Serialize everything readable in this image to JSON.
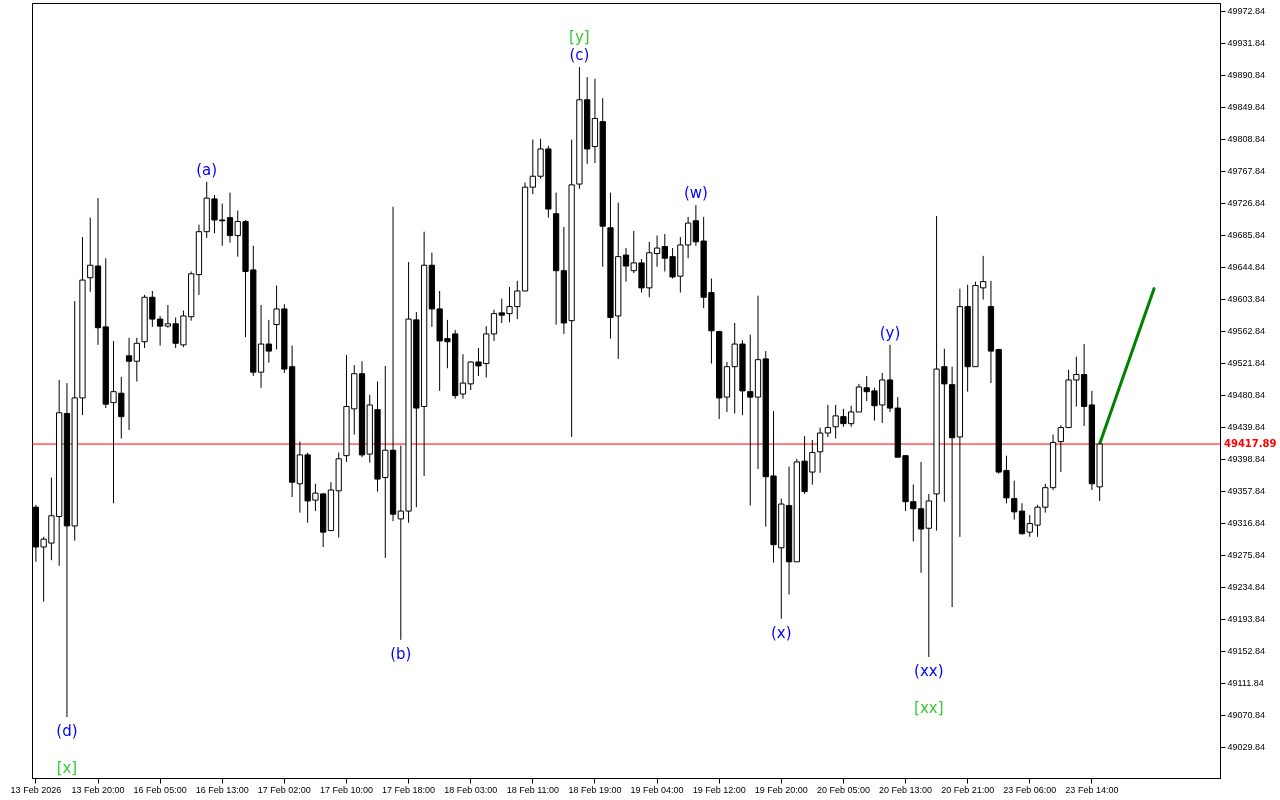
{
  "chart_data": {
    "type": "candlestick",
    "categories": [
      "13 Feb 2026",
      null,
      null,
      null,
      null,
      null,
      null,
      null,
      "13 Feb 20:00",
      null,
      null,
      null,
      null,
      null,
      null,
      null,
      "16 Feb 05:00",
      null,
      null,
      null,
      null,
      null,
      null,
      null,
      "16 Feb 13:00",
      null,
      null,
      null,
      null,
      null,
      null,
      null,
      "17 Feb 02:00",
      null,
      null,
      null,
      null,
      null,
      null,
      null,
      "17 Feb 10:00",
      null,
      null,
      null,
      null,
      null,
      null,
      null,
      "17 Feb 18:00",
      null,
      null,
      null,
      null,
      null,
      null,
      null,
      "18 Feb 03:00",
      null,
      null,
      null,
      null,
      null,
      null,
      null,
      "18 Feb 11:00",
      null,
      null,
      null,
      null,
      null,
      null,
      null,
      "18 Feb 19:00",
      null,
      null,
      null,
      null,
      null,
      null,
      null,
      "19 Feb 04:00",
      null,
      null,
      null,
      null,
      null,
      null,
      null,
      "19 Feb 12:00",
      null,
      null,
      null,
      null,
      null,
      null,
      null,
      "19 Feb 20:00",
      null,
      null,
      null,
      null,
      null,
      null,
      null,
      "20 Feb 05:00",
      null,
      null,
      null,
      null,
      null,
      null,
      null,
      "20 Feb 13:00",
      null,
      null,
      null,
      null,
      null,
      null,
      null,
      "20 Feb 21:00",
      null,
      null,
      null,
      null,
      null,
      null,
      null,
      "23 Feb 06:00",
      null,
      null,
      null,
      null,
      null,
      null,
      null,
      "23 Feb 14:00",
      null,
      null,
      null,
      null,
      null,
      null,
      null,
      null,
      null,
      null,
      null,
      null,
      null,
      null,
      null,
      null
    ],
    "ohlc": [
      [
        49337,
        49340,
        49267,
        49286
      ],
      [
        49286,
        49299,
        49216,
        49296
      ],
      [
        49291,
        49375,
        49269,
        49326
      ],
      [
        49325,
        49500,
        49262,
        49458
      ],
      [
        49457,
        49496,
        49068,
        49313
      ],
      [
        49313,
        49601,
        49294,
        49477
      ],
      [
        49477,
        49683,
        49455,
        49628
      ],
      [
        49631,
        49708,
        49613,
        49647
      ],
      [
        49646,
        49733,
        49545,
        49567
      ],
      [
        49568,
        49656,
        49464,
        49469
      ],
      [
        49471,
        49550,
        49342,
        49485
      ],
      [
        49483,
        49504,
        49425,
        49453
      ],
      [
        49531,
        49554,
        49436,
        49524
      ],
      [
        49524,
        49554,
        49498,
        49547
      ],
      [
        49549,
        49609,
        49541,
        49606
      ],
      [
        49606,
        49614,
        49568,
        49578
      ],
      [
        49578,
        49582,
        49544,
        49569
      ],
      [
        49569,
        49596,
        49567,
        49572
      ],
      [
        49572,
        49580,
        49541,
        49547
      ],
      [
        49545,
        49589,
        49542,
        49582
      ],
      [
        49581,
        49639,
        49576,
        49636
      ],
      [
        49635,
        49699,
        49609,
        49690
      ],
      [
        49690,
        49754,
        49682,
        49733
      ],
      [
        49732,
        49737,
        49688,
        49705
      ],
      [
        49705,
        49726,
        49672,
        49704
      ],
      [
        49708,
        49740,
        49676,
        49685
      ],
      [
        49685,
        49717,
        49658,
        49703
      ],
      [
        49703,
        49705,
        49555,
        49639
      ],
      [
        49641,
        49672,
        49505,
        49510
      ],
      [
        49510,
        49596,
        49490,
        49546
      ],
      [
        49546,
        49577,
        49522,
        49537
      ],
      [
        49571,
        49621,
        49539,
        49591
      ],
      [
        49591,
        49597,
        49509,
        49514
      ],
      [
        49517,
        49544,
        49350,
        49369
      ],
      [
        49367,
        49421,
        49330,
        49404
      ],
      [
        49404,
        49407,
        49317,
        49345
      ],
      [
        49346,
        49367,
        49332,
        49355
      ],
      [
        49354,
        49355,
        49286,
        49305
      ],
      [
        49307,
        49369,
        49307,
        49359
      ],
      [
        49358,
        49407,
        49298,
        49399
      ],
      [
        49403,
        49532,
        49395,
        49466
      ],
      [
        49463,
        49519,
        49430,
        49508
      ],
      [
        49508,
        49524,
        49401,
        49404
      ],
      [
        49405,
        49481,
        49394,
        49468
      ],
      [
        49462,
        49498,
        49357,
        49373
      ],
      [
        49375,
        49518,
        49272,
        49410
      ],
      [
        49410,
        49722,
        49319,
        49328
      ],
      [
        49322,
        49416,
        49167,
        49332
      ],
      [
        49332,
        49651,
        49317,
        49578
      ],
      [
        49577,
        49587,
        49337,
        49464
      ],
      [
        49466,
        49690,
        49377,
        49647
      ],
      [
        49647,
        49663,
        49568,
        49591
      ],
      [
        49591,
        49614,
        49486,
        49550
      ],
      [
        49553,
        49577,
        49515,
        49549
      ],
      [
        49559,
        49564,
        49476,
        49480
      ],
      [
        49482,
        49533,
        49476,
        49496
      ],
      [
        49495,
        49524,
        49487,
        49523
      ],
      [
        49523,
        49541,
        49505,
        49518
      ],
      [
        49521,
        49569,
        49503,
        49559
      ],
      [
        49559,
        49590,
        49550,
        49585
      ],
      [
        49586,
        49604,
        49573,
        49583
      ],
      [
        49585,
        49619,
        49574,
        49594
      ],
      [
        49594,
        49627,
        49578,
        49614
      ],
      [
        49614,
        49753,
        49614,
        49747
      ],
      [
        49747,
        49808,
        49738,
        49761
      ],
      [
        49761,
        49809,
        49758,
        49796
      ],
      [
        49796,
        49800,
        49708,
        49719
      ],
      [
        49713,
        49740,
        49571,
        49640
      ],
      [
        49640,
        49696,
        49559,
        49573
      ],
      [
        49576,
        49808,
        49427,
        49750
      ],
      [
        49751,
        49901,
        49745,
        49859
      ],
      [
        49859,
        49888,
        49777,
        49796
      ],
      [
        49799,
        49886,
        49778,
        49835
      ],
      [
        49831,
        49861,
        49645,
        49697
      ],
      [
        49695,
        49740,
        49553,
        49580
      ],
      [
        49582,
        49727,
        49527,
        49658
      ],
      [
        49660,
        49669,
        49626,
        49646
      ],
      [
        49640,
        49691,
        49637,
        49650
      ],
      [
        49650,
        49655,
        49612,
        49618
      ],
      [
        49618,
        49677,
        49606,
        49663
      ],
      [
        49662,
        49685,
        49645,
        49669
      ],
      [
        49671,
        49687,
        49639,
        49656
      ],
      [
        49658,
        49669,
        49630,
        49632
      ],
      [
        49633,
        49683,
        49612,
        49673
      ],
      [
        49673,
        49709,
        49656,
        49701
      ],
      [
        49704,
        49724,
        49672,
        49677
      ],
      [
        49678,
        49709,
        49592,
        49606
      ],
      [
        49612,
        49630,
        49521,
        49563
      ],
      [
        49562,
        49563,
        49450,
        49477
      ],
      [
        49478,
        49523,
        49459,
        49517
      ],
      [
        49517,
        49573,
        49457,
        49546
      ],
      [
        49546,
        49551,
        49455,
        49486
      ],
      [
        49485,
        49558,
        49339,
        49478
      ],
      [
        49478,
        49608,
        49386,
        49526
      ],
      [
        49527,
        49537,
        49312,
        49376
      ],
      [
        49377,
        49460,
        49266,
        49289
      ],
      [
        49285,
        49348,
        49194,
        49341
      ],
      [
        49339,
        49389,
        49225,
        49267
      ],
      [
        49267,
        49399,
        49267,
        49395
      ],
      [
        49396,
        49428,
        49354,
        49357
      ],
      [
        49382,
        49423,
        49366,
        49407
      ],
      [
        49408,
        49439,
        49381,
        49432
      ],
      [
        49432,
        49468,
        49427,
        49439
      ],
      [
        49440,
        49468,
        49425,
        49454
      ],
      [
        49453,
        49463,
        49440,
        49444
      ],
      [
        49444,
        49467,
        49440,
        49459
      ],
      [
        49459,
        49495,
        49459,
        49491
      ],
      [
        49490,
        49505,
        49473,
        49485
      ],
      [
        49486,
        49490,
        49448,
        49467
      ],
      [
        49468,
        49509,
        49445,
        49500
      ],
      [
        49500,
        49545,
        49459,
        49464
      ],
      [
        49464,
        49478,
        49401,
        49401
      ],
      [
        49403,
        49403,
        49332,
        49344
      ],
      [
        49344,
        49366,
        49293,
        49335
      ],
      [
        49335,
        49395,
        49253,
        49309
      ],
      [
        49310,
        49354,
        49145,
        49345
      ],
      [
        49354,
        49710,
        49307,
        49514
      ],
      [
        49517,
        49540,
        49344,
        49495
      ],
      [
        49494,
        49517,
        49209,
        49426
      ],
      [
        49427,
        49617,
        49299,
        49594
      ],
      [
        49594,
        49622,
        49485,
        49517
      ],
      [
        49517,
        49626,
        49517,
        49621
      ],
      [
        49618,
        49659,
        49603,
        49626
      ],
      [
        49594,
        49627,
        49496,
        49537
      ],
      [
        49539,
        49540,
        49380,
        49382
      ],
      [
        49384,
        49403,
        49342,
        49349
      ],
      [
        49348,
        49371,
        49321,
        49331
      ],
      [
        49332,
        49342,
        49302,
        49303
      ],
      [
        49305,
        49327,
        49299,
        49316
      ],
      [
        49314,
        49340,
        49299,
        49337
      ],
      [
        49337,
        49367,
        49330,
        49362
      ],
      [
        49362,
        49430,
        49359,
        49420
      ],
      [
        49421,
        49442,
        49382,
        49439
      ],
      [
        49439,
        49513,
        49439,
        49500
      ],
      [
        49500,
        49530,
        49466,
        49507
      ],
      [
        49507,
        49546,
        49441,
        49466
      ],
      [
        49468,
        49486,
        49359,
        49367
      ],
      [
        49363,
        49417.89,
        49345,
        49417.89
      ],
      null,
      null,
      null,
      null,
      null,
      null,
      null,
      null,
      null,
      null,
      null,
      null,
      null,
      null,
      null
    ],
    "series": [
      {
        "type": "line",
        "color": "#008000",
        "values": [
          null,
          null,
          null,
          null,
          null,
          null,
          null,
          null,
          null,
          null,
          null,
          null,
          null,
          null,
          null,
          null,
          null,
          null,
          null,
          null,
          null,
          null,
          null,
          null,
          null,
          null,
          null,
          null,
          null,
          null,
          null,
          null,
          null,
          null,
          null,
          null,
          null,
          null,
          null,
          null,
          null,
          null,
          null,
          null,
          null,
          null,
          null,
          null,
          null,
          null,
          null,
          null,
          null,
          null,
          null,
          null,
          null,
          null,
          null,
          null,
          null,
          null,
          null,
          null,
          null,
          null,
          null,
          null,
          null,
          null,
          null,
          null,
          null,
          null,
          null,
          null,
          null,
          null,
          null,
          null,
          null,
          null,
          null,
          null,
          null,
          null,
          null,
          null,
          null,
          null,
          null,
          null,
          null,
          null,
          null,
          null,
          null,
          null,
          null,
          null,
          null,
          null,
          null,
          null,
          null,
          null,
          null,
          null,
          null,
          null,
          null,
          null,
          null,
          null,
          null,
          null,
          null,
          null,
          null,
          null,
          null,
          null,
          null,
          null,
          null,
          null,
          null,
          null,
          null,
          null,
          null,
          null,
          null,
          null,
          null,
          null,
          null,
          49417.89,
          null,
          null,
          null,
          null,
          null,
          null,
          49617,
          null,
          null,
          null,
          null,
          null,
          null,
          null,
          null
        ]
      }
    ],
    "ylim": [
      48990,
      49983
    ],
    "yticks": [
      49029.84,
      49070.84,
      49111.84,
      49152.84,
      49193.84,
      49234.84,
      49275.84,
      49316.84,
      49357.84,
      49398.84,
      49439.84,
      49480.84,
      49521.84,
      49562.84,
      49603.84,
      49644.84,
      49685.84,
      49726.84,
      49767.84,
      49808.84,
      49849.84,
      49890.84,
      49931.84,
      49972.84
    ],
    "ref_lines": [
      {
        "axis": "y",
        "value": 49417.89,
        "label": "49417.89",
        "color": "#ff0000"
      }
    ],
    "annotations": [
      {
        "text": "(a)",
        "y": 49754
      },
      {
        "text": "(b)",
        "y": 49167
      },
      {
        "text": "(c)",
        "y": 49901
      },
      {
        "text": "[y]",
        "y": 49901
      },
      {
        "text": "(d)",
        "y": 49068
      },
      {
        "text": "[x]",
        "y": 49068
      },
      {
        "text": "(w)",
        "y": 49724
      },
      {
        "text": "(x)",
        "y": 49194
      },
      {
        "text": "(y)",
        "y": 49545
      },
      {
        "text": "(xx)",
        "y": 49145
      },
      {
        "text": "[xx]",
        "y": 49145
      }
    ]
  }
}
